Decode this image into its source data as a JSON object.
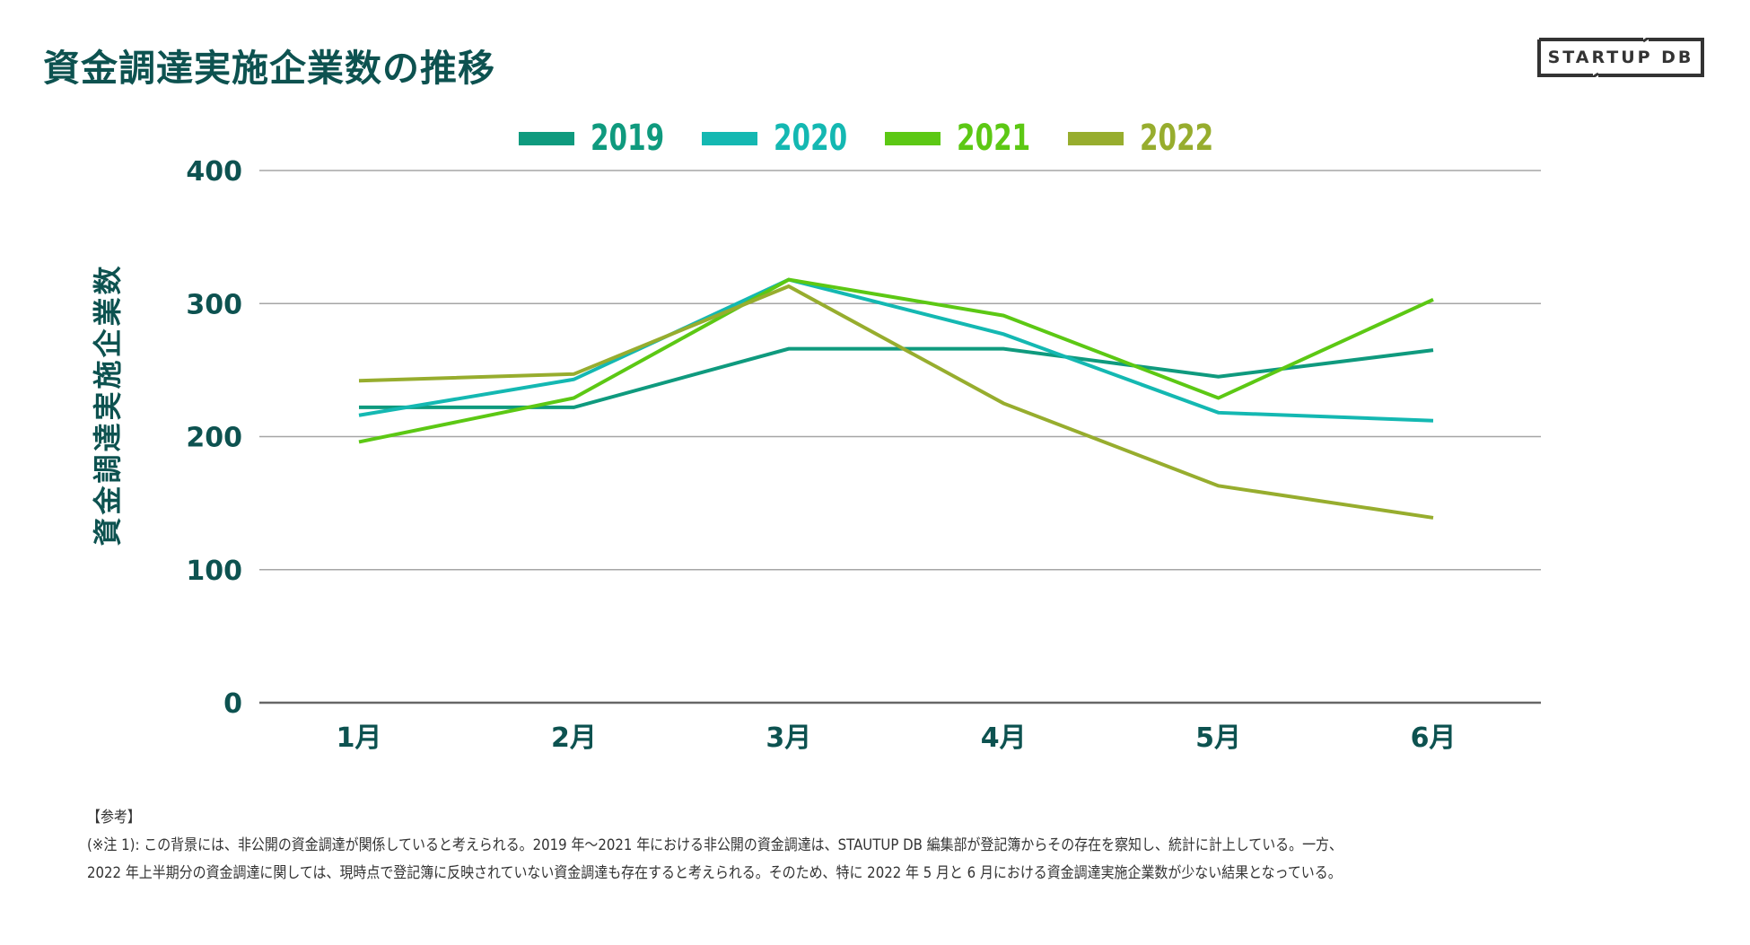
{
  "title": "資金調達実施企業数の推移",
  "logo": {
    "text": "STARTUP DB"
  },
  "chart_data": {
    "type": "line",
    "title": "資金調達実施企業数の推移",
    "xlabel": "",
    "ylabel": "資金調達実施企業数",
    "categories": [
      "1月",
      "2月",
      "3月",
      "4月",
      "5月",
      "6月"
    ],
    "ylim": [
      0,
      400
    ],
    "yticks": [
      0,
      100,
      200,
      300,
      400
    ],
    "ytick_labels": [
      "0",
      "100",
      "200",
      "300",
      "400"
    ],
    "grid": true,
    "legend_position": "top-center",
    "series": [
      {
        "name": "2019",
        "color": "#0f9a7e",
        "values": [
          222,
          222,
          266,
          266,
          245,
          265
        ]
      },
      {
        "name": "2020",
        "color": "#14b8b2",
        "values": [
          216,
          243,
          318,
          277,
          218,
          212
        ]
      },
      {
        "name": "2021",
        "color": "#5cc814",
        "values": [
          196,
          229,
          318,
          291,
          229,
          303
        ]
      },
      {
        "name": "2022",
        "color": "#97ad2e",
        "values": [
          242,
          247,
          313,
          225,
          163,
          139
        ]
      }
    ]
  },
  "notes": {
    "heading": "【参考】",
    "line1": "(※注 1): この背景には、非公開の資金調達が関係していると考えられる。2019 年～2021 年における非公開の資金調達は、STAUTUP DB 編集部が登記簿からその存在を察知し、統計に計上している。一方、",
    "line2": "2022 年上半期分の資金調達に関しては、現時点で登記簿に反映されていない資金調達も存在すると考えられる。そのため、特に 2022 年 5 月と 6 月における資金調達実施企業数が少ない結果となっている。"
  },
  "colors": {
    "title": "#0d5250",
    "axis_text": "#0d5250",
    "grid": "#a6a6a6",
    "baseline": "#666666"
  }
}
